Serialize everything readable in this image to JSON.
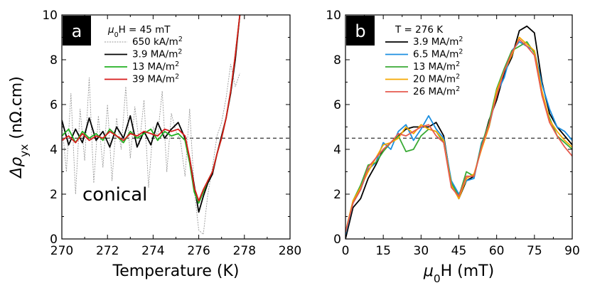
{
  "chart_data": [
    {
      "type": "line",
      "panel_label": "a",
      "title": "",
      "legend_title": {
        "prefix": "μ",
        "sub": "0",
        "rest": "H = 45 mT"
      },
      "xlabel": "Temperature (K)",
      "ylabel": {
        "prefix": "Δρ",
        "sub": "yx",
        "rest": " (nΩ.cm)"
      },
      "xlim": [
        270,
        280
      ],
      "ylim": [
        0,
        10
      ],
      "xticks": [
        270,
        272,
        274,
        276,
        278,
        280
      ],
      "yticks": [
        0,
        2,
        4,
        6,
        8,
        10
      ],
      "reference_line_y": 4.5,
      "annotation": "conical",
      "series": [
        {
          "name": "650 kA/m²",
          "label_base": "650 kA/m",
          "label_sup": "2",
          "color": "#999999",
          "style": "dotted",
          "x": [
            270.0,
            270.2,
            270.4,
            270.6,
            270.8,
            271.0,
            271.2,
            271.4,
            271.6,
            271.8,
            272.0,
            272.2,
            272.4,
            272.6,
            272.8,
            273.0,
            273.2,
            273.4,
            273.6,
            273.8,
            274.0,
            274.2,
            274.4,
            274.6,
            274.8,
            275.0,
            275.2,
            275.4,
            275.6,
            275.8,
            276.0,
            276.2,
            276.4,
            276.6,
            276.8,
            277.0,
            277.2,
            277.4,
            277.6,
            277.8
          ],
          "y": [
            5.2,
            3.0,
            6.5,
            2.0,
            5.8,
            3.5,
            7.2,
            2.5,
            5.5,
            3.2,
            6.0,
            2.6,
            5.4,
            4.0,
            6.8,
            3.6,
            5.9,
            4.2,
            6.2,
            2.3,
            5.0,
            4.6,
            6.6,
            3.0,
            5.6,
            4.8,
            4.4,
            2.8,
            5.8,
            2.2,
            0.4,
            0.2,
            2.0,
            3.2,
            4.6,
            5.2,
            6.3,
            7.8,
            6.8,
            7.4
          ]
        },
        {
          "name": "3.9 MA/m²",
          "label_base": "3.9 MA/m",
          "label_sup": "2",
          "color": "#000000",
          "style": "solid",
          "x": [
            270.0,
            270.3,
            270.6,
            270.9,
            271.2,
            271.5,
            271.8,
            272.1,
            272.4,
            272.7,
            273.0,
            273.3,
            273.6,
            273.9,
            274.2,
            274.5,
            274.8,
            275.1,
            275.4,
            275.6,
            275.8,
            276.0,
            276.2,
            276.4,
            276.6,
            276.8,
            277.0,
            277.2,
            277.4,
            277.6,
            277.8
          ],
          "y": [
            5.3,
            4.2,
            4.9,
            4.3,
            5.4,
            4.4,
            4.8,
            4.1,
            5.0,
            4.5,
            5.5,
            4.1,
            4.8,
            4.2,
            5.2,
            4.5,
            4.9,
            5.2,
            4.5,
            3.6,
            2.4,
            1.2,
            1.9,
            2.5,
            2.9,
            3.8,
            4.6,
            5.4,
            6.5,
            8.0,
            10.0
          ]
        },
        {
          "name": "13 MA/m²",
          "label_base": "13 MA/m",
          "label_sup": "2",
          "color": "#22b022",
          "style": "solid",
          "x": [
            270.0,
            270.3,
            270.6,
            270.9,
            271.2,
            271.5,
            271.8,
            272.1,
            272.4,
            272.7,
            273.0,
            273.3,
            273.6,
            273.9,
            274.2,
            274.5,
            274.8,
            275.1,
            275.4,
            275.6,
            275.8,
            276.0,
            276.2,
            276.4,
            276.6,
            276.8,
            277.0,
            277.2,
            277.4,
            277.6,
            277.8
          ],
          "y": [
            4.6,
            4.9,
            4.3,
            4.8,
            4.5,
            4.7,
            4.4,
            4.9,
            4.6,
            4.3,
            4.8,
            4.5,
            4.7,
            4.9,
            4.4,
            4.8,
            4.6,
            4.7,
            4.4,
            3.4,
            2.1,
            1.6,
            2.1,
            2.6,
            3.0,
            3.8,
            4.5,
            5.4,
            6.6,
            8.2,
            10.0
          ]
        },
        {
          "name": "39 MA/m²",
          "label_base": "39 MA/m",
          "label_sup": "2",
          "color": "#d81a1a",
          "style": "solid",
          "x": [
            270.0,
            270.3,
            270.6,
            270.9,
            271.2,
            271.5,
            271.8,
            272.1,
            272.4,
            272.7,
            273.0,
            273.3,
            273.6,
            273.9,
            274.2,
            274.5,
            274.8,
            275.1,
            275.4,
            275.6,
            275.8,
            276.0,
            276.2,
            276.4,
            276.6,
            276.8,
            277.0,
            277.2,
            277.4,
            277.6,
            277.8
          ],
          "y": [
            4.4,
            4.6,
            4.3,
            4.7,
            4.4,
            4.6,
            4.5,
            4.8,
            4.6,
            4.4,
            4.7,
            4.6,
            4.8,
            4.7,
            4.6,
            4.9,
            4.8,
            4.9,
            4.6,
            3.6,
            2.3,
            1.7,
            2.2,
            2.6,
            3.0,
            3.8,
            4.5,
            5.4,
            6.6,
            8.2,
            10.0
          ]
        }
      ]
    },
    {
      "type": "line",
      "panel_label": "b",
      "title": "",
      "legend_title": {
        "prefix": "",
        "sub": "",
        "rest": "T = 276 K"
      },
      "xlabel": {
        "prefix": "μ",
        "sub": "0",
        "rest": "H (mT)"
      },
      "ylabel": "",
      "xlim": [
        0,
        90
      ],
      "ylim": [
        0,
        10
      ],
      "xticks": [
        0,
        15,
        30,
        45,
        60,
        75,
        90
      ],
      "yticks": [
        0,
        2,
        4,
        6,
        8,
        10
      ],
      "reference_line_y": 4.5,
      "series": [
        {
          "name": "3.9 MA/m²",
          "label_base": "3.9 MA/m",
          "label_sup": "2",
          "color": "#000000",
          "style": "solid",
          "x": [
            0,
            3,
            6,
            9,
            12,
            15,
            18,
            21,
            24,
            27,
            30,
            33,
            36,
            39,
            42,
            45,
            48,
            51,
            54,
            57,
            60,
            63,
            66,
            69,
            72,
            75,
            78,
            81,
            84,
            87,
            90
          ],
          "y": [
            0.0,
            1.4,
            1.8,
            2.7,
            3.3,
            4.0,
            4.3,
            4.6,
            4.9,
            5.0,
            5.0,
            5.0,
            5.2,
            4.6,
            2.5,
            1.8,
            2.6,
            2.8,
            4.1,
            5.3,
            6.2,
            7.4,
            8.1,
            9.3,
            9.5,
            9.2,
            7.0,
            5.6,
            5.0,
            4.6,
            4.2
          ]
        },
        {
          "name": "6.5 MA/m²",
          "label_base": "6.5 MA/m",
          "label_sup": "2",
          "color": "#1c8fe0",
          "style": "solid",
          "x": [
            0,
            3,
            6,
            9,
            12,
            15,
            18,
            21,
            24,
            27,
            30,
            33,
            36,
            39,
            42,
            45,
            48,
            51,
            54,
            57,
            60,
            63,
            66,
            69,
            72,
            75,
            78,
            81,
            84,
            87,
            90
          ],
          "y": [
            0.2,
            1.6,
            2.2,
            3.1,
            3.4,
            4.3,
            4.0,
            4.8,
            5.1,
            4.4,
            4.9,
            5.5,
            4.9,
            4.5,
            2.6,
            2.0,
            2.6,
            2.7,
            4.3,
            5.0,
            6.5,
            7.2,
            8.4,
            8.8,
            8.6,
            8.4,
            6.9,
            5.8,
            5.0,
            4.8,
            4.4
          ]
        },
        {
          "name": "13 MA/m²",
          "label_base": "13 MA/m",
          "label_sup": "2",
          "color": "#3aaa35",
          "style": "solid",
          "x": [
            0,
            3,
            6,
            9,
            12,
            15,
            18,
            21,
            24,
            27,
            30,
            33,
            36,
            39,
            42,
            45,
            48,
            51,
            54,
            57,
            60,
            63,
            66,
            69,
            72,
            75,
            78,
            81,
            84,
            87,
            90
          ],
          "y": [
            0.3,
            1.7,
            2.4,
            3.3,
            3.4,
            3.9,
            4.3,
            4.6,
            3.9,
            4.0,
            4.6,
            4.9,
            4.8,
            4.3,
            2.5,
            1.9,
            3.0,
            2.8,
            4.2,
            5.2,
            6.7,
            7.6,
            8.4,
            8.6,
            8.8,
            8.3,
            6.4,
            5.4,
            4.6,
            4.3,
            4.0
          ]
        },
        {
          "name": "20 MA/m²",
          "label_base": "20 MA/m",
          "label_sup": "2",
          "color": "#f5a800",
          "style": "solid",
          "x": [
            0,
            3,
            6,
            9,
            12,
            15,
            18,
            21,
            24,
            27,
            30,
            33,
            36,
            39,
            42,
            45,
            48,
            51,
            54,
            57,
            60,
            63,
            66,
            69,
            72,
            75,
            78,
            81,
            84,
            87,
            90
          ],
          "y": [
            0.3,
            1.7,
            2.3,
            3.0,
            3.6,
            4.2,
            4.3,
            4.5,
            5.0,
            4.7,
            5.1,
            4.9,
            4.8,
            4.4,
            2.4,
            1.8,
            2.7,
            2.9,
            4.0,
            5.0,
            6.6,
            7.5,
            8.2,
            9.0,
            8.7,
            8.4,
            6.6,
            5.3,
            4.8,
            4.4,
            4.1
          ]
        },
        {
          "name": "26 MA/m²",
          "label_base": "26 MA/m",
          "label_sup": "2",
          "color": "#e65a4e",
          "style": "solid",
          "x": [
            0,
            3,
            6,
            9,
            12,
            15,
            18,
            21,
            24,
            27,
            30,
            33,
            36,
            39,
            42,
            45,
            48,
            51,
            54,
            57,
            60,
            63,
            66,
            69,
            72,
            75,
            78,
            81,
            84,
            87,
            90
          ],
          "y": [
            0.3,
            1.6,
            2.2,
            3.2,
            3.6,
            4.0,
            4.3,
            4.7,
            4.6,
            4.8,
            5.0,
            5.1,
            4.6,
            4.3,
            2.3,
            1.9,
            2.8,
            2.8,
            4.1,
            5.1,
            6.4,
            7.5,
            8.3,
            8.9,
            8.6,
            8.2,
            6.4,
            5.2,
            4.6,
            4.1,
            3.7
          ]
        }
      ]
    }
  ]
}
